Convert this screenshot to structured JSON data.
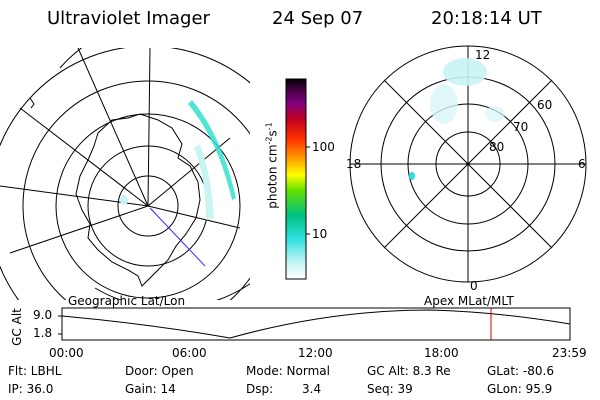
{
  "header": {
    "instrument": "Ultraviolet Imager",
    "date": "24 Sep 07",
    "time": "20:18:14 UT"
  },
  "left_panel": {
    "caption": "Geographic Lat/Lon"
  },
  "right_panel": {
    "caption": "Apex MLat/MLT",
    "mlt_labels": [
      "12",
      "18",
      "6",
      "0"
    ],
    "mlat_labels": [
      "60",
      "70",
      "80"
    ]
  },
  "colorbar": {
    "unit": "photon cm",
    "unit_exp1": "-2",
    "unit_mid": "s",
    "unit_exp2": "-1",
    "ticks": [
      "100",
      "10"
    ],
    "colors": [
      "#ffffff",
      "#c8f4f4",
      "#30e0e0",
      "#00c080",
      "#60e000",
      "#ffff00",
      "#ffa000",
      "#ff3000",
      "#c00020",
      "#800080",
      "#400040",
      "#000000"
    ]
  },
  "timeline": {
    "ylabel": "GC Alt",
    "y_ticks": [
      "9.0",
      "1.8"
    ],
    "x_ticks": [
      "00:00",
      "06:00",
      "12:00",
      "18:00",
      "23:59"
    ],
    "marker_color": "#d00000"
  },
  "info": {
    "flt": "Flt: LBHL",
    "ip": "IP: 36.0",
    "door": "Door: Open",
    "gain": "Gain: 14",
    "mode": "Mode: Normal",
    "dsp_label": "Dsp:",
    "dsp_value": "3.4",
    "gcalt": "GC Alt: 8.3 Re",
    "seq": "Seq: 39",
    "glat": "GLat: -80.6",
    "glon": "GLon: 95.9"
  }
}
